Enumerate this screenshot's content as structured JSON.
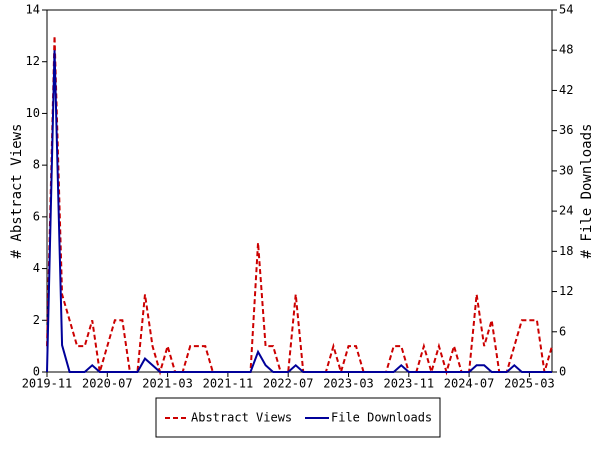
{
  "chart_data": {
    "type": "line",
    "y_label": "# Abstract Views",
    "y2_label": "# File Downloads",
    "categories": [
      "2019-11",
      null,
      null,
      null,
      null,
      null,
      null,
      null,
      "2020-07",
      null,
      null,
      null,
      null,
      null,
      null,
      null,
      "2021-03",
      null,
      null,
      null,
      null,
      null,
      null,
      null,
      "2021-11",
      null,
      null,
      null,
      null,
      null,
      null,
      null,
      "2022-07",
      null,
      null,
      null,
      null,
      null,
      null,
      null,
      "2023-03",
      null,
      null,
      null,
      null,
      null,
      null,
      null,
      "2023-11",
      null,
      null,
      null,
      null,
      null,
      null,
      null,
      "2024-07",
      null,
      null,
      null,
      null,
      null,
      null,
      null,
      "2025-03",
      null,
      null,
      null
    ],
    "series": [
      {
        "name": "Abstract Views",
        "color": "#cc0000",
        "dash": true,
        "values": [
          1,
          13,
          3,
          2,
          1,
          1,
          2,
          0,
          1,
          2,
          2,
          0,
          0,
          3,
          1,
          0,
          1,
          0,
          0,
          1,
          1,
          1,
          0,
          0,
          0,
          0,
          0,
          0,
          5,
          1,
          1,
          0,
          0,
          3,
          0,
          0,
          0,
          0,
          1,
          0,
          1,
          1,
          0,
          0,
          0,
          0,
          1,
          1,
          0,
          0,
          1,
          0,
          1,
          0,
          1,
          0,
          0,
          3,
          1,
          2,
          0,
          0,
          1,
          2,
          2,
          2,
          0,
          1
        ]
      },
      {
        "name": "File Downloads",
        "color": "#000099",
        "axis": "y2",
        "values": [
          0,
          48,
          4,
          0,
          0,
          0,
          1,
          0,
          0,
          0,
          0,
          0,
          0,
          2,
          1,
          0,
          0,
          0,
          0,
          0,
          0,
          0,
          0,
          0,
          0,
          0,
          0,
          0,
          3,
          1,
          0,
          0,
          0,
          1,
          0,
          0,
          0,
          0,
          0,
          0,
          0,
          0,
          0,
          0,
          0,
          0,
          0,
          1,
          0,
          0,
          0,
          0,
          0,
          0,
          0,
          0,
          0,
          1,
          1,
          0,
          0,
          0,
          1,
          0,
          0,
          0,
          0,
          0
        ]
      }
    ],
    "ylim": [
      0,
      14
    ],
    "yticks": [
      0,
      2,
      4,
      6,
      8,
      10,
      12,
      14
    ],
    "y2lim": [
      0,
      54
    ],
    "y2ticks": [
      0,
      6,
      12,
      18,
      24,
      30,
      36,
      42,
      48,
      54
    ]
  }
}
